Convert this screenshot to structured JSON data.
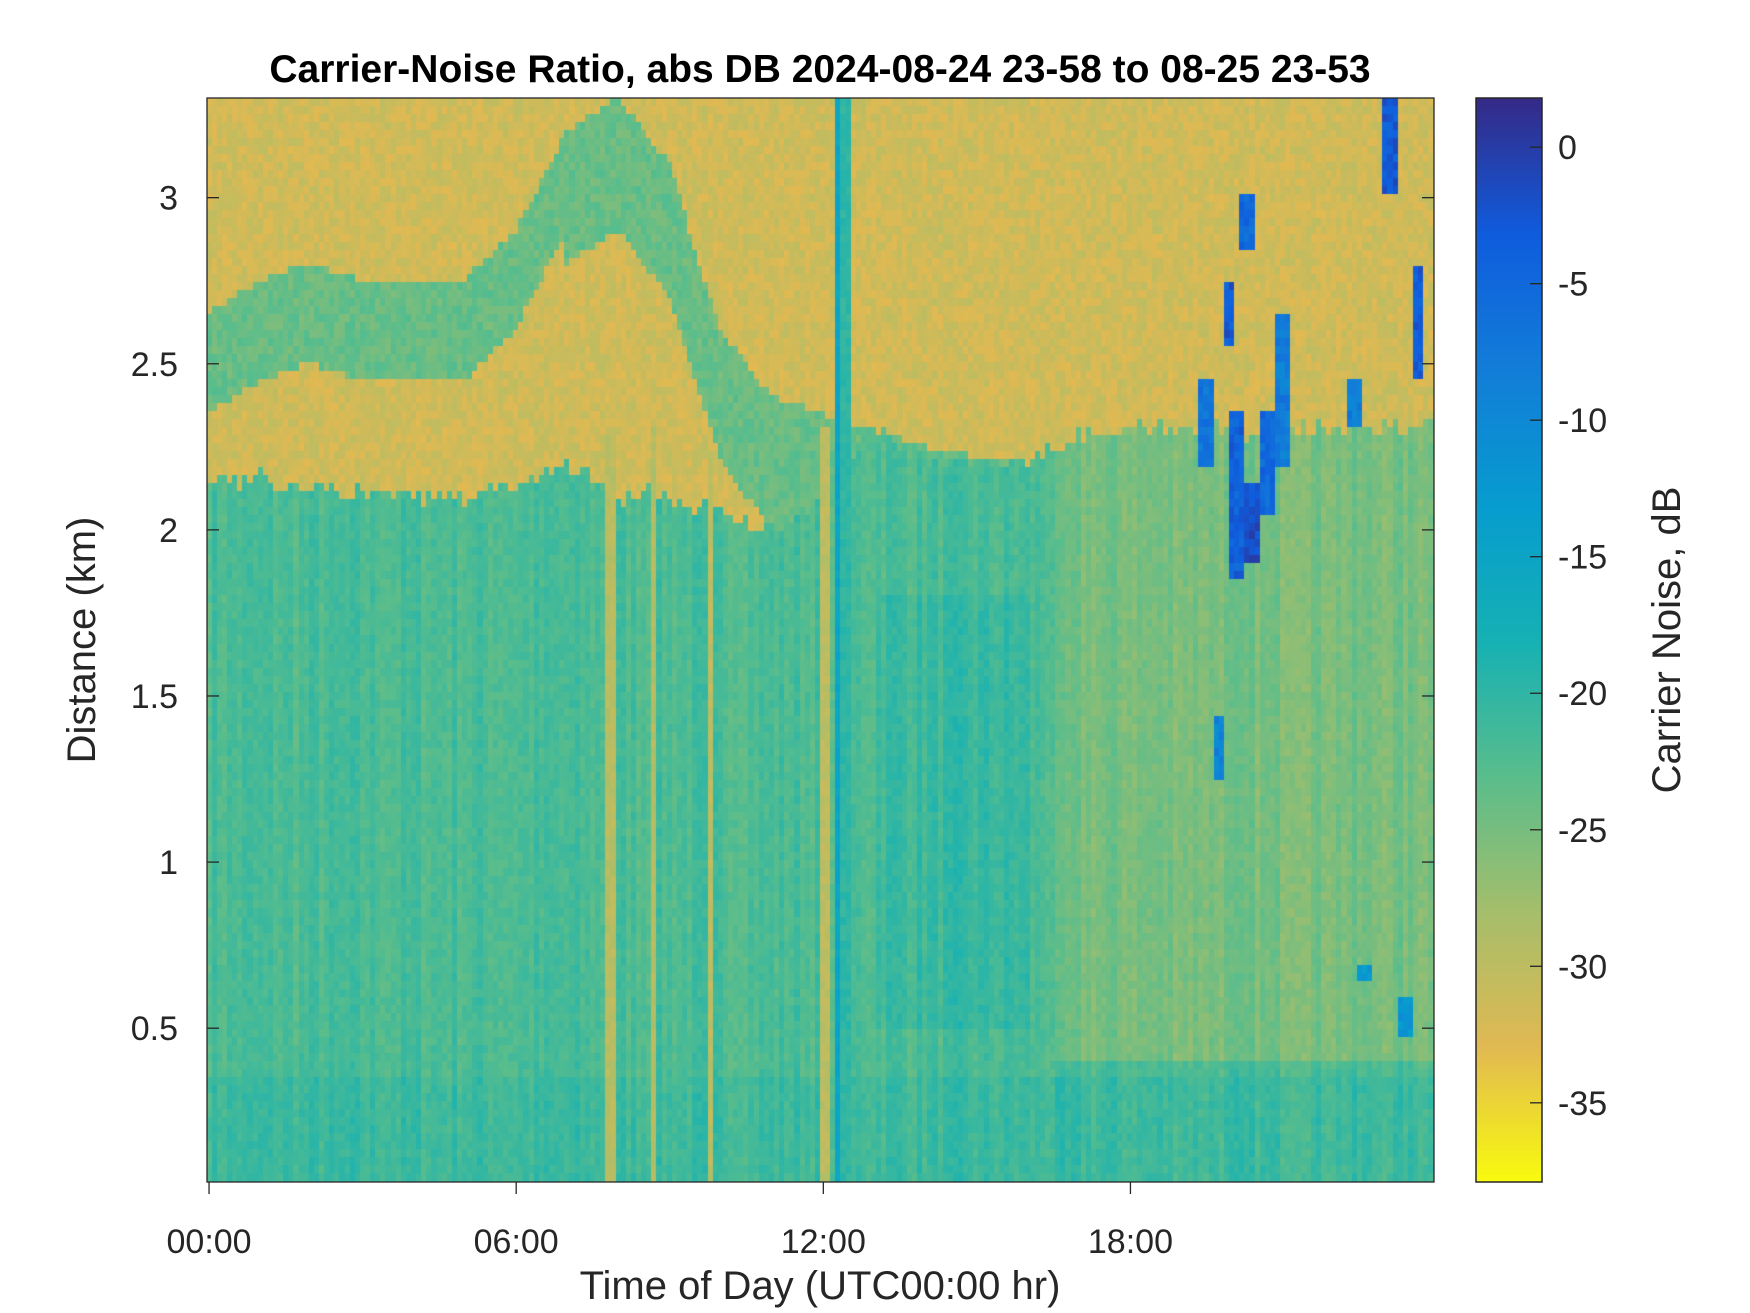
{
  "chart_data": {
    "type": "heatmap",
    "title": "Carrier-Noise Ratio, abs DB 2024-08-24 23-58 to 08-25 23-53",
    "xlabel": "Time of Day (UTC00:00 hr)",
    "ylabel": "Distance (km)",
    "colorbar_label": "Carrier Noise, dB",
    "xlim_hours": [
      -0.04,
      23.93
    ],
    "ylim": [
      0.037,
      3.3
    ],
    "clim": [
      -37.9,
      1.8
    ],
    "colormap": "parula (reversed: yellow = low, dark blue = high)",
    "x_ticks": [
      {
        "value": 0,
        "label": "00:00"
      },
      {
        "value": 6,
        "label": "06:00"
      },
      {
        "value": 12,
        "label": "12:00"
      },
      {
        "value": 18,
        "label": "18:00"
      }
    ],
    "y_ticks": [
      {
        "value": 0.5,
        "label": "0.5"
      },
      {
        "value": 1,
        "label": "1"
      },
      {
        "value": 1.5,
        "label": "1.5"
      },
      {
        "value": 2,
        "label": "2"
      },
      {
        "value": 2.5,
        "label": "2.5"
      },
      {
        "value": 3,
        "label": "3"
      }
    ],
    "c_ticks": [
      {
        "value": 0,
        "label": "0"
      },
      {
        "value": -5,
        "label": "-5"
      },
      {
        "value": -10,
        "label": "-10"
      },
      {
        "value": -15,
        "label": "-15"
      },
      {
        "value": -20,
        "label": "-20"
      },
      {
        "value": -25,
        "label": "-25"
      },
      {
        "value": -30,
        "label": "-30"
      },
      {
        "value": -35,
        "label": "-35"
      }
    ],
    "grid": false,
    "approx_field": {
      "hours": [
        0,
        1,
        2,
        3,
        4,
        5,
        6,
        7,
        8,
        9,
        10,
        11,
        12,
        13,
        14,
        15,
        16,
        17,
        18,
        19,
        20,
        21,
        22,
        23,
        24
      ],
      "mixed_layer_top_km": [
        2.15,
        2.15,
        2.12,
        2.1,
        2.1,
        2.1,
        2.15,
        2.2,
        2.1,
        2.1,
        2.05,
        2.0,
        2.1,
        2.3,
        2.22,
        2.2,
        2.2,
        2.3,
        2.3,
        2.3,
        2.3,
        2.3,
        2.3,
        2.3,
        2.3
      ],
      "residual_layer_top_km": [
        2.65,
        2.75,
        2.8,
        2.75,
        2.75,
        2.75,
        2.9,
        3.2,
        3.3,
        3.1,
        2.6,
        2.4,
        2.35,
        2.3,
        2.25,
        2.22,
        2.2,
        null,
        null,
        null,
        null,
        null,
        null,
        null,
        null
      ],
      "value_above_layer_db": -31.5,
      "value_in_layer_db": -22,
      "value_residual_layer_db": -24,
      "vertical_stripes": [
        {
          "hour": 7.85,
          "value_db": -29.5
        },
        {
          "hour": 8.7,
          "value_db": -29
        },
        {
          "hour": 9.8,
          "value_db": -30
        },
        {
          "hour": 12.05,
          "value_db": -30
        },
        {
          "hour": 12.3,
          "value_db": -15
        },
        {
          "hour": 12.45,
          "value_db": -20
        }
      ],
      "plumes": [
        {
          "hour": 19.5,
          "km_from": 2.2,
          "km_to": 2.45,
          "value_db": -7
        },
        {
          "hour": 19.95,
          "km_from": 2.55,
          "km_to": 2.75,
          "value_db": -3
        },
        {
          "hour": 20.1,
          "km_from": 1.85,
          "km_to": 2.35,
          "value_db": -4
        },
        {
          "hour": 20.4,
          "km_from": 1.9,
          "km_to": 2.15,
          "value_db": -2
        },
        {
          "hour": 20.7,
          "km_from": 2.05,
          "km_to": 2.35,
          "value_db": -5
        },
        {
          "hour": 21.0,
          "km_from": 2.2,
          "km_to": 2.65,
          "value_db": -8
        },
        {
          "hour": 20.3,
          "km_from": 2.85,
          "km_to": 3.02,
          "value_db": -5
        },
        {
          "hour": 19.75,
          "km_from": 1.25,
          "km_to": 1.43,
          "value_db": -9
        },
        {
          "hour": 22.4,
          "km_from": 2.3,
          "km_to": 2.45,
          "value_db": -8
        },
        {
          "hour": 23.1,
          "km_from": 3.0,
          "km_to": 3.3,
          "value_db": -3
        },
        {
          "hour": 23.65,
          "km_from": 2.45,
          "km_to": 2.8,
          "value_db": -3
        },
        {
          "hour": 22.6,
          "km_from": 0.65,
          "km_to": 0.69,
          "value_db": -12
        },
        {
          "hour": 23.4,
          "km_from": 0.48,
          "km_to": 0.6,
          "value_db": -12
        }
      ]
    }
  }
}
